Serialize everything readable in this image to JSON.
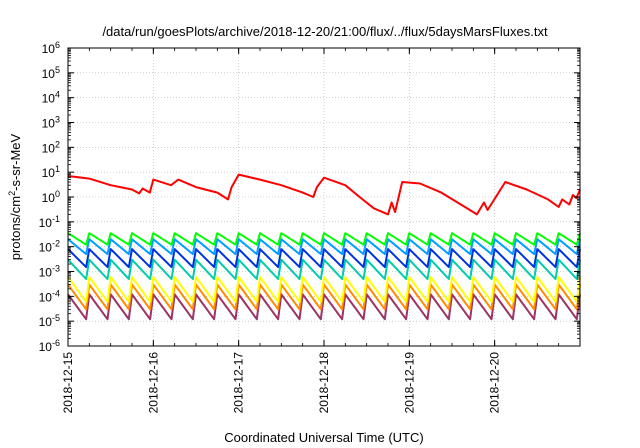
{
  "chart_data": {
    "type": "line",
    "title": "/data/run/goesPlots/archive/2018-12-20/21:00/flux/../flux/5daysMarsFluxes.txt",
    "xlabel": "Coordinated Universal Time (UTC)",
    "ylabel": {
      "base": "protons/cm",
      "sup": "2",
      "rest": "-s-sr-MeV"
    },
    "yscale": "log",
    "ylim_exp": [
      -6,
      6
    ],
    "ytick_exponents": [
      -6,
      -5,
      -4,
      -3,
      -2,
      -1,
      0,
      1,
      2,
      3,
      4,
      5,
      6
    ],
    "ytick_base": "10",
    "xlim": [
      "2018-12-15",
      "2018-12-21"
    ],
    "xtick_labels": [
      "2018-12-15",
      "2018-12-16",
      "2018-12-17",
      "2018-12-18",
      "2018-12-19",
      "2018-12-20"
    ],
    "grid": true,
    "legend": "none",
    "series": [
      {
        "color": "#ff0000",
        "points": [
          [
            "2018-12-15",
            7.0
          ],
          [
            "2018-12-15 06:00",
            5.5
          ],
          [
            "2018-12-15 12:00",
            3.0
          ],
          [
            "2018-12-15 18:00",
            2.0
          ],
          [
            "2018-12-15 20:00",
            1.4
          ],
          [
            "2018-12-15 21:00",
            2.2
          ],
          [
            "2018-12-15 23:00",
            1.5
          ],
          [
            "2018-12-16",
            5.0
          ],
          [
            "2018-12-16 05:00",
            3.0
          ],
          [
            "2018-12-16 07:00",
            5.0
          ],
          [
            "2018-12-16 12:00",
            2.5
          ],
          [
            "2018-12-16 18:00",
            1.5
          ],
          [
            "2018-12-16 21:00",
            0.8
          ],
          [
            "2018-12-16 22:00",
            2.5
          ],
          [
            "2018-12-17",
            8.0
          ],
          [
            "2018-12-17 06:00",
            5.0
          ],
          [
            "2018-12-17 12:00",
            3.0
          ],
          [
            "2018-12-17 18:00",
            1.5
          ],
          [
            "2018-12-17 21:00",
            1.0
          ],
          [
            "2018-12-17 22:00",
            2.5
          ],
          [
            "2018-12-18",
            6.0
          ],
          [
            "2018-12-18 06:00",
            3.0
          ],
          [
            "2018-12-18 10:00",
            1.0
          ],
          [
            "2018-12-18 14:00",
            0.35
          ],
          [
            "2018-12-18 18:00",
            0.2
          ],
          [
            "2018-12-18 19:00",
            0.6
          ],
          [
            "2018-12-18 20:00",
            0.25
          ],
          [
            "2018-12-18 22:00",
            4.0
          ],
          [
            "2018-12-19 03:00",
            3.5
          ],
          [
            "2018-12-19 09:00",
            1.5
          ],
          [
            "2018-12-19 15:00",
            0.45
          ],
          [
            "2018-12-19 19:00",
            0.2
          ],
          [
            "2018-12-19 21:00",
            0.6
          ],
          [
            "2018-12-19 22:00",
            0.3
          ],
          [
            "2018-12-20 03:00",
            4.0
          ],
          [
            "2018-12-20 09:00",
            2.0
          ],
          [
            "2018-12-20 15:00",
            0.8
          ],
          [
            "2018-12-20 18:00",
            0.4
          ],
          [
            "2018-12-20 19:00",
            0.8
          ],
          [
            "2018-12-20 21:00",
            0.5
          ],
          [
            "2018-12-20 22:00",
            1.2
          ],
          [
            "2018-12-20 23:00",
            0.9
          ],
          [
            "2018-12-21",
            2.0
          ]
        ]
      },
      {
        "color": "#00ff00",
        "sawtooth": {
          "peak": 0.035,
          "trough": 0.012,
          "period_hours": 6
        }
      },
      {
        "color": "#00a0ff",
        "sawtooth": {
          "peak": 0.02,
          "trough": 0.005,
          "period_hours": 6
        }
      },
      {
        "color": "#0033dd",
        "sawtooth": {
          "peak": 0.008,
          "trough": 0.0015,
          "period_hours": 6
        }
      },
      {
        "color": "#00ccaa",
        "sawtooth": {
          "peak": 0.003,
          "trough": 0.0005,
          "period_hours": 6
        }
      },
      {
        "color": "#ffff00",
        "sawtooth": {
          "peak": 0.0006,
          "trough": 6e-05,
          "period_hours": 6
        }
      },
      {
        "color": "#ff8c00",
        "sawtooth": {
          "peak": 0.0003,
          "trough": 3e-05,
          "period_hours": 6
        }
      },
      {
        "color": "#993366",
        "sawtooth": {
          "peak": 0.00012,
          "trough": 1.2e-05,
          "period_hours": 6
        }
      }
    ]
  }
}
